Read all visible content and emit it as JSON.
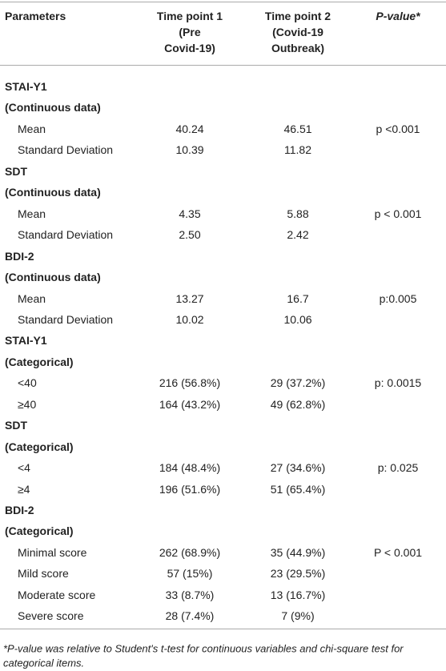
{
  "header": {
    "parameters": "Parameters",
    "tp1": [
      "Time point 1",
      "(Pre",
      "Covid-19)"
    ],
    "tp2": [
      "Time point 2",
      "(Covid-19",
      "Outbreak)"
    ],
    "p": "P-value*"
  },
  "rows": [
    {
      "label": "STAI-Y1"
    },
    {
      "label": "(Continuous data)"
    },
    {
      "label": "Mean",
      "tp1": "40.24",
      "tp2": "46.51",
      "p": "p <0.001"
    },
    {
      "label": "Standard Deviation",
      "tp1": "10.39",
      "tp2": "11.82"
    },
    {
      "label": "SDT"
    },
    {
      "label": "(Continuous data)"
    },
    {
      "label": "Mean",
      "tp1": "4.35",
      "tp2": "5.88",
      "p": "p < 0.001"
    },
    {
      "label": "Standard Deviation",
      "tp1": "2.50",
      "tp2": "2.42"
    },
    {
      "label": "BDI-2"
    },
    {
      "label": "(Continuous data)"
    },
    {
      "label": "Mean",
      "tp1": "13.27",
      "tp2": "16.7",
      "p": "p:0.005"
    },
    {
      "label": "Standard Deviation",
      "tp1": "10.02",
      "tp2": "10.06"
    },
    {
      "label": "STAI-Y1"
    },
    {
      "label": "(Categorical)"
    },
    {
      "label": "<40",
      "tp1": "216 (56.8%)",
      "tp2": "29 (37.2%)",
      "p": "p: 0.0015"
    },
    {
      "label": "≥40",
      "tp1": "164 (43.2%)",
      "tp2": "49 (62.8%)"
    },
    {
      "label": "SDT"
    },
    {
      "label": "(Categorical)"
    },
    {
      "label": "<4",
      "tp1": "184 (48.4%)",
      "tp2": "27 (34.6%)",
      "p": "p: 0.025"
    },
    {
      "label": "≥4",
      "tp1": "196 (51.6%)",
      "tp2": "51 (65.4%)"
    },
    {
      "label": "BDI-2"
    },
    {
      "label": "(Categorical)"
    },
    {
      "label": "Minimal score",
      "tp1": "262 (68.9%)",
      "tp2": "35 (44.9%)",
      "p": "P < 0.001"
    },
    {
      "label": "Mild score",
      "tp1": "57 (15%)",
      "tp2": "23 (29.5%)"
    },
    {
      "label": "Moderate score",
      "tp1": "33 (8.7%)",
      "tp2": "13 (16.7%)"
    },
    {
      "label": "Severe score",
      "tp1": "28 (7.4%)",
      "tp2": "7 (9%)"
    }
  ],
  "footnote": [
    "*P-value was relative to Student's t-test for continuous variables and chi-square test for",
    "categorical items."
  ]
}
